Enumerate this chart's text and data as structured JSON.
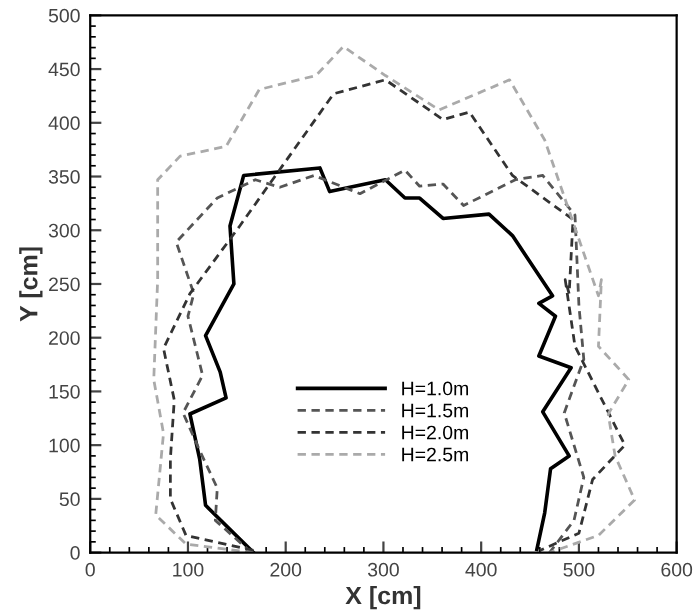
{
  "chart_data": {
    "type": "line",
    "xlabel": "X [cm]",
    "ylabel": "Y [cm]",
    "xlim": [
      0,
      600
    ],
    "xticks": [
      0,
      100,
      200,
      300,
      400,
      500,
      600
    ],
    "ylim": [
      0,
      500
    ],
    "yticks": [
      0,
      50,
      100,
      150,
      200,
      250,
      300,
      350,
      400,
      450,
      500
    ],
    "grid": false,
    "legend": "bottom",
    "marker": "none",
    "series": [
      {
        "name": "H=1.0m",
        "color": "#000000",
        "line_style": "solid",
        "x": [
          167,
          118,
          112,
          102,
          139,
          133,
          118,
          147,
          143,
          157,
          235,
          245,
          302,
          322,
          337,
          361,
          408,
          432,
          473,
          459,
          476,
          459,
          492,
          463,
          490,
          471,
          465,
          457
        ],
        "values": [
          0,
          44,
          87,
          129,
          144,
          168,
          202,
          250,
          304,
          351,
          358,
          336,
          347,
          330,
          330,
          311,
          315,
          295,
          239,
          232,
          220,
          183,
          172,
          131,
          90,
          78,
          37,
          3
        ]
      },
      {
        "name": "H=1.5m",
        "color": "#555555",
        "line_style": "dashed",
        "x": [
          165,
          128,
          130,
          112,
          95,
          115,
          100,
          106,
          88,
          130,
          169,
          194,
          229,
          276,
          322,
          337,
          361,
          382,
          435,
          463,
          496,
          500,
          505,
          485,
          505,
          495,
          470
        ],
        "values": [
          0,
          30,
          60,
          95,
          130,
          165,
          220,
          241,
          289,
          330,
          347,
          340,
          351,
          334,
          356,
          341,
          343,
          323,
          347,
          351,
          314,
          230,
          180,
          130,
          70,
          30,
          0
        ]
      },
      {
        "name": "H=2.0m",
        "color": "#333333",
        "line_style": "dashed",
        "x": [
          167,
          98,
          82,
          82,
          86,
          75,
          102,
          153,
          249,
          302,
          361,
          388,
          432,
          494,
          490,
          486,
          496,
          547,
          514,
          500,
          460
        ],
        "values": [
          2,
          16,
          50,
          87,
          142,
          190,
          241,
          304,
          427,
          440,
          403,
          410,
          351,
          310,
          241,
          254,
          192,
          100,
          68,
          18,
          2
        ]
      },
      {
        "name": "H=2.5m",
        "color": "#aaaaaa",
        "line_style": "dashed",
        "x": [
          167,
          98,
          67,
          75,
          65,
          69,
          69,
          92,
          139,
          173,
          231,
          259,
          302,
          357,
          429,
          465,
          520,
          523,
          520,
          551,
          530,
          537,
          557,
          520,
          470
        ],
        "values": [
          0,
          8,
          35,
          111,
          161,
          254,
          347,
          369,
          378,
          431,
          444,
          471,
          444,
          412,
          440,
          384,
          239,
          254,
          192,
          161,
          129,
          90,
          49,
          16,
          0
        ]
      }
    ]
  }
}
